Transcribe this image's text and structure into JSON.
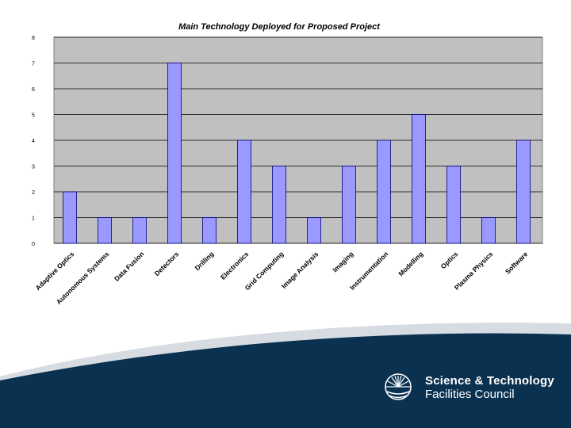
{
  "chart_data": {
    "type": "bar",
    "title": "Main Technology Deployed for Proposed Project",
    "categories": [
      "Adaptive Optics",
      "Autonomous Systems",
      "Data Fusion",
      "Detectors",
      "Drilling",
      "Electronics",
      "Grid Computing",
      "Image Analysis",
      "Imaging",
      "Instrumentation",
      "Modelling",
      "Optics",
      "Plasma Physics",
      "Software"
    ],
    "values": [
      2,
      1,
      1,
      7,
      1,
      4,
      3,
      1,
      3,
      4,
      5,
      3,
      1,
      4
    ],
    "ylim": [
      0,
      8
    ],
    "yticks": [
      "0",
      "1",
      "2",
      "3",
      "4",
      "5",
      "6",
      "7",
      "8"
    ],
    "xlabel": "",
    "ylabel": "",
    "grid": true,
    "colors": {
      "plot_bg": "#c0c0c0",
      "bar": "#9999ff",
      "bar_edge": "#000080",
      "grid": "#000000"
    }
  },
  "footer": {
    "org_line1": "Science & Technology",
    "org_line2": "Facilities Council",
    "colors": {
      "navy": "#0b3150",
      "band": "#d7dce2"
    }
  }
}
